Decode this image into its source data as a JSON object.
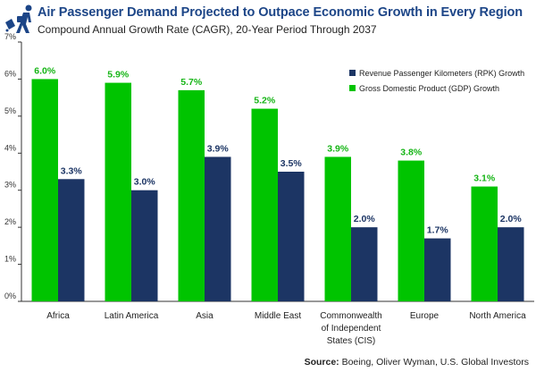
{
  "header": {
    "title": "Air Passenger Demand Projected to Outpace Economic Growth in Every Region",
    "subtitle": "Compound Annual Growth Rate (CAGR), 20-Year Period Through 2037",
    "icon": "traveler-with-luggage-icon"
  },
  "footer": {
    "source_label": "Source:",
    "source_text": "Boeing, Oliver Wyman, U.S. Global Investors"
  },
  "chart_data": {
    "type": "bar",
    "title": "Air Passenger Demand Projected to Outpace Economic Growth in Every Region",
    "subtitle": "Compound Annual Growth Rate (CAGR), 20-Year Period Through 2037",
    "categories": [
      [
        "Africa"
      ],
      [
        "Latin America"
      ],
      [
        "Asia"
      ],
      [
        "Middle East"
      ],
      [
        "Commonwealth",
        "of Independent",
        "States (CIS)"
      ],
      [
        "Europe"
      ],
      [
        "North America"
      ]
    ],
    "series": [
      {
        "name": "Gross Domestic Product (GDP) Growth",
        "color": "#00c400",
        "values": [
          6.0,
          5.9,
          5.7,
          5.2,
          3.9,
          3.8,
          3.1
        ],
        "labels": [
          "6.0%",
          "5.9%",
          "5.7%",
          "5.2%",
          "3.9%",
          "3.8%",
          "3.1%"
        ]
      },
      {
        "name": "Revenue Passenger Kilometers (RPK) Growth",
        "color": "#1c3564",
        "values": [
          3.3,
          3.0,
          3.9,
          3.5,
          2.0,
          1.7,
          2.0
        ],
        "labels": [
          "3.3%",
          "3.0%",
          "3.9%",
          "3.5%",
          "2.0%",
          "1.7%",
          "2.0%"
        ]
      }
    ],
    "legend": [
      {
        "label": "Revenue Passenger Kilometers (RPK) Growth",
        "color": "#1c3564"
      },
      {
        "label": "Gross Domestic Product (GDP) Growth",
        "color": "#00c400"
      }
    ],
    "legend_position": "top-right",
    "yticks": [
      "0%",
      "1%",
      "2%",
      "3%",
      "4%",
      "5%",
      "6%",
      "7%"
    ],
    "ylim": [
      0,
      7
    ],
    "xlabel": "",
    "ylabel": "",
    "grid": false
  }
}
